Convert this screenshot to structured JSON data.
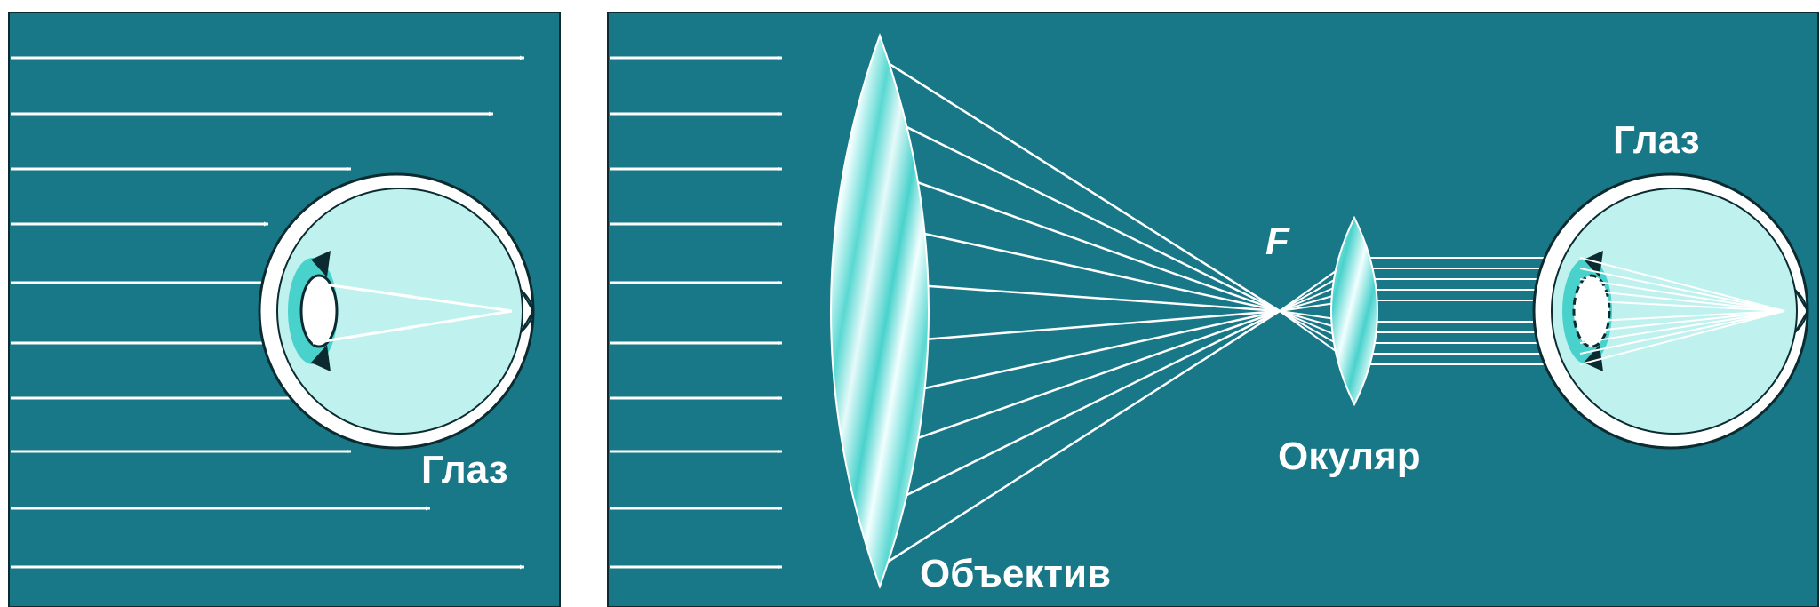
{
  "labels": {
    "eye_left": "Глаз",
    "eye_right": "Глаз",
    "objective": "Объектив",
    "eyepiece": "Окуляр",
    "focus": "F"
  },
  "colors": {
    "background": "#187888",
    "ray": "#ffffff",
    "lens_light": "#e6fafa",
    "lens_band": "#49d2cc",
    "eyeball": "#bff2ef",
    "eye_inner": "#49d2cc",
    "sclera": "#ffffff",
    "eye_outline": "#0b2b30"
  }
}
